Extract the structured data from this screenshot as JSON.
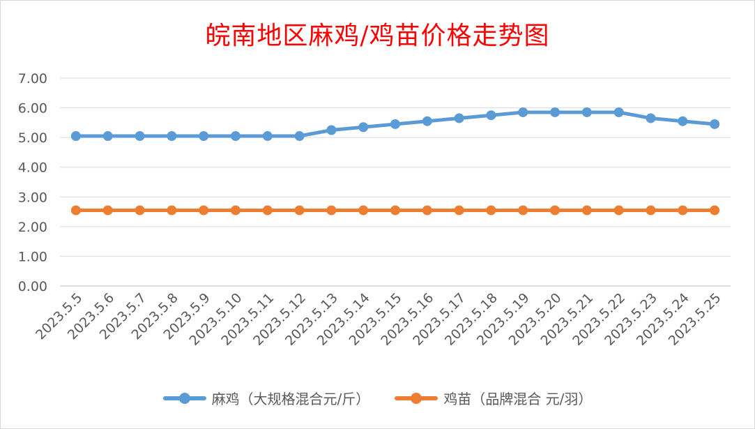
{
  "chart_data": {
    "type": "line",
    "title": "皖南地区麻鸡/鸡苗价格走势图",
    "categories": [
      "2023.5.5",
      "2023.5.6",
      "2023.5.7",
      "2023.5.8",
      "2023.5.9",
      "2023.5.10",
      "2023.5.11",
      "2023.5.12",
      "2023.5.13",
      "2023.5.14",
      "2023.5.15",
      "2023.5.16",
      "2023.5.17",
      "2023.5.18",
      "2023.5.19",
      "2023.5.20",
      "2023.5.21",
      "2023.5.22",
      "2023.5.23",
      "2023.5.24",
      "2023.5.25"
    ],
    "series": [
      {
        "name": "麻鸡（大规格混合元/斤）",
        "color": "#5b9bd5",
        "values": [
          5.05,
          5.05,
          5.05,
          5.05,
          5.05,
          5.05,
          5.05,
          5.05,
          5.25,
          5.35,
          5.45,
          5.55,
          5.65,
          5.75,
          5.85,
          5.85,
          5.85,
          5.85,
          5.65,
          5.55,
          5.45
        ]
      },
      {
        "name": "鸡苗（品牌混合 元/羽）",
        "color": "#ed7d31",
        "values": [
          2.55,
          2.55,
          2.55,
          2.55,
          2.55,
          2.55,
          2.55,
          2.55,
          2.55,
          2.55,
          2.55,
          2.55,
          2.55,
          2.55,
          2.55,
          2.55,
          2.55,
          2.55,
          2.55,
          2.55,
          2.55
        ]
      }
    ],
    "yticks": [
      "0.00",
      "1.00",
      "2.00",
      "3.00",
      "4.00",
      "5.00",
      "6.00",
      "7.00"
    ],
    "ylim": [
      0,
      7
    ],
    "grid": true,
    "legend_position": "bottom"
  }
}
